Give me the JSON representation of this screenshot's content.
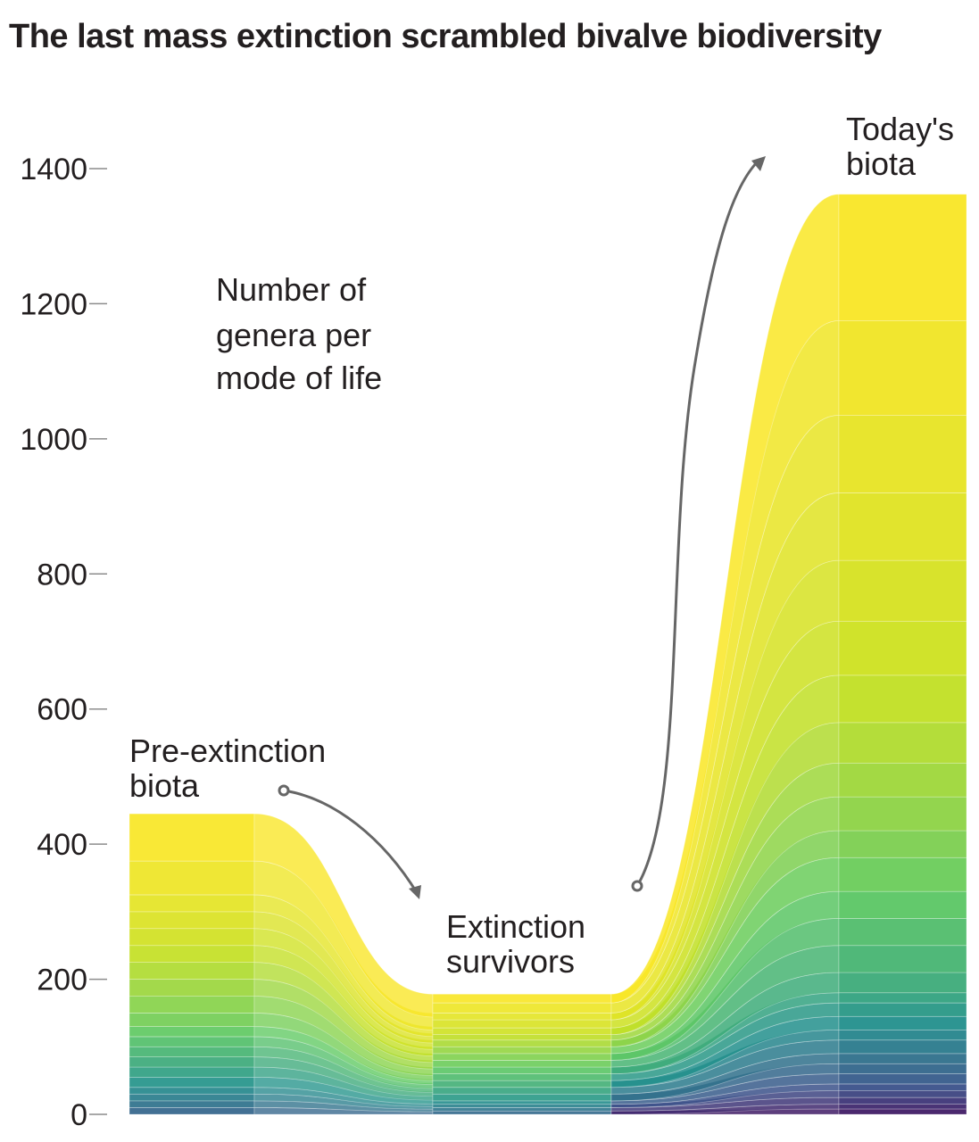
{
  "chart_data": {
    "type": "area",
    "title": "The last mass extinction scrambled bivalve biodiversity",
    "subtitle": "",
    "xlabel": "",
    "ylabel": "",
    "ylim": [
      0,
      1400
    ],
    "yticks": [
      0,
      200,
      400,
      600,
      800,
      1000,
      1200,
      1400
    ],
    "grid": false,
    "stages": [
      "Pre-extinction biota",
      "Extinction survivors",
      "Today's biota"
    ],
    "total_genera": [
      445,
      178,
      1362
    ],
    "modes_of_life_boundaries": {
      "pre_extinction": [
        0,
        10,
        20,
        30,
        40,
        55,
        70,
        85,
        100,
        115,
        130,
        150,
        175,
        200,
        225,
        250,
        275,
        300,
        325,
        375,
        445
      ],
      "extinction_survivors": [
        0,
        5,
        10,
        15,
        20,
        30,
        40,
        50,
        60,
        70,
        80,
        90,
        100,
        110,
        118,
        128,
        140,
        150,
        165,
        178
      ],
      "todays_biota": [
        0,
        8,
        15,
        25,
        35,
        45,
        60,
        75,
        90,
        110,
        125,
        145,
        165,
        180,
        210,
        250,
        290,
        330,
        380,
        420,
        470,
        520,
        580,
        650,
        730,
        820,
        920,
        1035,
        1175,
        1362
      ]
    },
    "annotations": {
      "panel_label": "Number of genera per mode of life",
      "pre": "Pre-extinction biota",
      "survivors": "Extinction survivors",
      "today": "Today's biota"
    },
    "colors": [
      "#440154",
      "#3b528b",
      "#21918c",
      "#5ec962",
      "#c8e020",
      "#fde725"
    ]
  },
  "annotations_text": {
    "panel_label_lines": [
      "Number of",
      "genera per",
      "mode of life"
    ],
    "pre_lines": [
      "Pre-extinction",
      "biota"
    ],
    "survivors_lines": [
      "Extinction",
      "survivors"
    ],
    "today_lines": [
      "Today's",
      "biota"
    ]
  }
}
